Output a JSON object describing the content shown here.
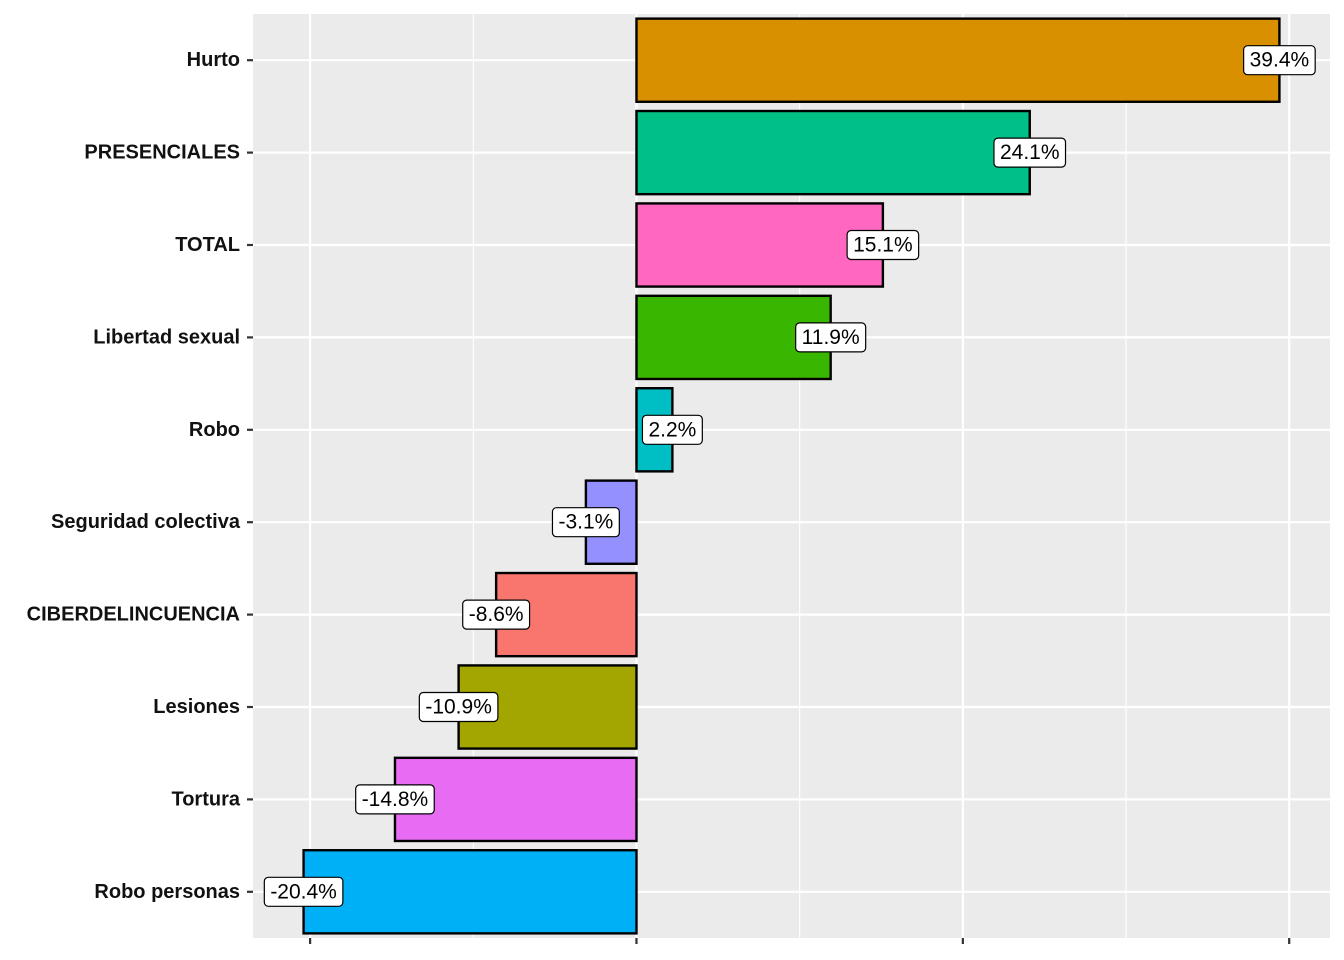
{
  "chart_data": {
    "type": "bar",
    "orientation": "horizontal",
    "categories": [
      "Hurto",
      "PRESENCIALES",
      "TOTAL",
      "Libertad sexual",
      "Robo",
      "Seguridad colectiva",
      "CIBERDELINCUENCIA",
      "Lesiones",
      "Tortura",
      "Robo personas"
    ],
    "values": [
      39.4,
      24.1,
      15.1,
      11.9,
      2.2,
      -3.1,
      -8.6,
      -10.9,
      -14.8,
      -20.4
    ],
    "labels": [
      "39.4%",
      "24.1%",
      "15.1%",
      "11.9%",
      "2.2%",
      "-3.1%",
      "-8.6%",
      "-10.9%",
      "-14.8%",
      "-20.4%"
    ],
    "colors": [
      "#D89000",
      "#00C087",
      "#FF67C1",
      "#39B600",
      "#00BFC4",
      "#9590FF",
      "#F8766D",
      "#A3A500",
      "#E76BF3",
      "#00B0F6"
    ],
    "xlim": [
      -23.5,
      42.5
    ],
    "x_major_breaks": [
      -20,
      0,
      20,
      40
    ],
    "x_minor_breaks": [
      -30,
      -10,
      10,
      30
    ],
    "title": "",
    "xlabel": "",
    "ylabel": "",
    "grid": true,
    "legend": "none",
    "panel_background": "#EBEBEB"
  }
}
